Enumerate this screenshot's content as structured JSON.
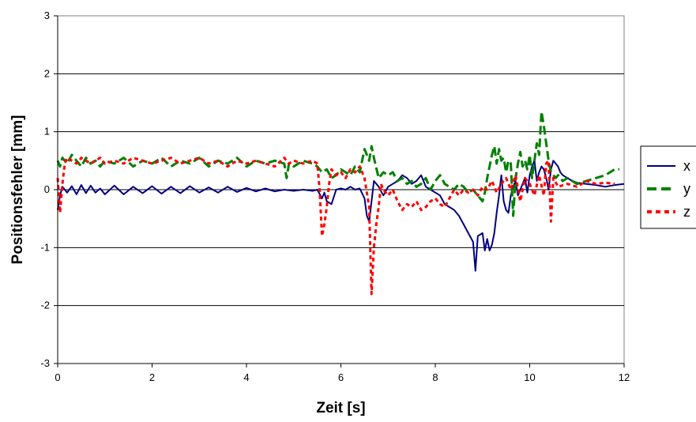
{
  "chart_data": {
    "type": "line",
    "title": "",
    "xlabel": "Zeit [s]",
    "ylabel": "Positionsfehler [mm]",
    "xlim": [
      0,
      12
    ],
    "ylim": [
      -3,
      3
    ],
    "xticks": [
      "0",
      "2",
      "4",
      "6",
      "8",
      "10",
      "12"
    ],
    "yticks": [
      "-3",
      "-2",
      "-1",
      "0",
      "1",
      "2",
      "3"
    ],
    "grid": "horizontal",
    "legend_position": "right",
    "series": [
      {
        "name": "x",
        "color": "#000080",
        "dash": "solid",
        "x": [
          0,
          0.05,
          0.1,
          0.2,
          0.3,
          0.4,
          0.5,
          0.6,
          0.7,
          0.8,
          0.9,
          1.0,
          1.2,
          1.4,
          1.6,
          1.8,
          2.0,
          2.2,
          2.4,
          2.6,
          2.8,
          3.0,
          3.2,
          3.4,
          3.6,
          3.8,
          4.0,
          4.2,
          4.4,
          4.6,
          4.8,
          5.0,
          5.2,
          5.4,
          5.5,
          5.6,
          5.65,
          5.7,
          5.8,
          5.9,
          6.0,
          6.1,
          6.2,
          6.3,
          6.4,
          6.5,
          6.55,
          6.6,
          6.65,
          6.7,
          6.8,
          6.9,
          7.0,
          7.1,
          7.2,
          7.3,
          7.4,
          7.5,
          7.6,
          7.7,
          7.8,
          7.9,
          8.0,
          8.1,
          8.2,
          8.3,
          8.4,
          8.5,
          8.6,
          8.7,
          8.8,
          8.85,
          8.9,
          9.0,
          9.05,
          9.1,
          9.15,
          9.2,
          9.25,
          9.3,
          9.35,
          9.4,
          9.45,
          9.5,
          9.55,
          9.6,
          9.65,
          9.7,
          9.75,
          9.8,
          9.85,
          9.9,
          9.95,
          10.0,
          10.05,
          10.1,
          10.15,
          10.2,
          10.25,
          10.3,
          10.35,
          10.4,
          10.45,
          10.5,
          10.55,
          10.6,
          10.65,
          10.7,
          10.8,
          10.9,
          11.0,
          11.2,
          11.4,
          11.6,
          11.8,
          12.0
        ],
        "y": [
          -0.35,
          -0.1,
          0.05,
          -0.05,
          0.06,
          -0.08,
          0.08,
          -0.06,
          0.07,
          -0.05,
          0.02,
          -0.08,
          0.07,
          -0.08,
          0.05,
          -0.06,
          0.06,
          -0.07,
          0.05,
          -0.06,
          0.06,
          -0.05,
          0.04,
          -0.05,
          0.05,
          -0.04,
          0.03,
          -0.03,
          0.02,
          -0.03,
          0.0,
          -0.02,
          0.0,
          -0.02,
          0.0,
          -0.15,
          -0.05,
          -0.2,
          -0.25,
          0.0,
          0.02,
          0.0,
          0.05,
          0.0,
          0.02,
          -0.15,
          -0.45,
          -0.55,
          -0.2,
          0.15,
          0.05,
          -0.1,
          0.05,
          0.1,
          0.15,
          0.25,
          0.2,
          0.1,
          0.15,
          0.25,
          0.05,
          0.0,
          -0.05,
          -0.1,
          -0.25,
          -0.3,
          -0.35,
          -0.45,
          -0.6,
          -0.75,
          -0.9,
          -1.4,
          -0.8,
          -0.75,
          -1.05,
          -0.85,
          -1.05,
          -0.95,
          -0.75,
          -0.4,
          -0.1,
          0.25,
          -0.2,
          -0.35,
          -0.4,
          -0.1,
          0.05,
          0.15,
          -0.1,
          0.0,
          0.1,
          0.2,
          -0.05,
          0.25,
          0.4,
          0.5,
          0.15,
          0.3,
          0.4,
          0.35,
          0.2,
          0.0,
          0.35,
          0.5,
          0.45,
          0.4,
          0.3,
          0.25,
          0.2,
          0.15,
          0.12,
          0.1,
          0.08,
          0.05,
          0.08,
          0.1
        ]
      },
      {
        "name": "y",
        "color": "#008000",
        "dash": "dashed",
        "x": [
          0,
          0.05,
          0.1,
          0.2,
          0.3,
          0.4,
          0.5,
          0.6,
          0.7,
          0.8,
          0.9,
          1.0,
          1.2,
          1.4,
          1.6,
          1.8,
          2.0,
          2.2,
          2.4,
          2.6,
          2.8,
          3.0,
          3.2,
          3.4,
          3.6,
          3.8,
          4.0,
          4.2,
          4.4,
          4.6,
          4.8,
          4.85,
          4.9,
          5.0,
          5.2,
          5.4,
          5.5,
          5.6,
          5.7,
          5.8,
          5.9,
          6.0,
          6.1,
          6.2,
          6.3,
          6.4,
          6.5,
          6.55,
          6.6,
          6.65,
          6.7,
          6.8,
          6.9,
          7.0,
          7.1,
          7.2,
          7.3,
          7.4,
          7.5,
          7.6,
          7.7,
          7.8,
          7.9,
          8.0,
          8.1,
          8.2,
          8.3,
          8.4,
          8.5,
          8.6,
          8.7,
          8.8,
          8.9,
          9.0,
          9.05,
          9.1,
          9.15,
          9.2,
          9.25,
          9.3,
          9.35,
          9.4,
          9.45,
          9.5,
          9.55,
          9.6,
          9.65,
          9.7,
          9.75,
          9.8,
          9.85,
          9.9,
          9.95,
          10.0,
          10.05,
          10.1,
          10.15,
          10.2,
          10.25,
          10.3,
          10.35,
          10.4,
          10.45,
          10.5,
          10.55,
          10.6,
          10.7,
          10.8,
          11.0,
          11.2,
          11.4,
          11.6,
          11.8,
          11.9
        ],
        "y": [
          0.5,
          0.4,
          0.55,
          0.45,
          0.6,
          0.5,
          0.4,
          0.55,
          0.45,
          0.5,
          0.4,
          0.5,
          0.45,
          0.55,
          0.4,
          0.5,
          0.45,
          0.55,
          0.4,
          0.5,
          0.45,
          0.55,
          0.4,
          0.5,
          0.45,
          0.55,
          0.4,
          0.5,
          0.45,
          0.5,
          0.45,
          0.2,
          0.45,
          0.4,
          0.5,
          0.45,
          0.4,
          0.3,
          0.35,
          0.2,
          0.25,
          0.35,
          0.3,
          0.25,
          0.4,
          0.3,
          0.7,
          0.6,
          0.5,
          0.75,
          0.55,
          0.2,
          0.3,
          0.25,
          0.3,
          0.15,
          0.2,
          0.1,
          0.15,
          0.05,
          0.1,
          0.2,
          0.0,
          0.15,
          0.25,
          0.1,
          0.05,
          0.0,
          0.1,
          0.05,
          -0.05,
          0.0,
          -0.1,
          -0.2,
          -0.05,
          0.2,
          0.4,
          0.6,
          0.75,
          0.45,
          0.7,
          0.5,
          0.55,
          0.3,
          0.5,
          0.45,
          -0.45,
          0.2,
          0.45,
          0.65,
          0.4,
          0.5,
          0.35,
          0.6,
          0.2,
          0.5,
          0.8,
          0.6,
          1.35,
          1.1,
          0.8,
          0.5,
          0.3,
          0.25,
          0.2,
          0.25,
          0.15,
          0.2,
          0.1,
          0.15,
          0.2,
          0.25,
          0.35,
          0.35
        ]
      },
      {
        "name": "z",
        "color": "#ff0000",
        "dash": "dotted",
        "x": [
          0,
          0.05,
          0.1,
          0.15,
          0.2,
          0.3,
          0.4,
          0.5,
          0.6,
          0.7,
          0.8,
          0.9,
          1.0,
          1.2,
          1.4,
          1.6,
          1.8,
          2.0,
          2.2,
          2.4,
          2.6,
          2.8,
          3.0,
          3.2,
          3.4,
          3.6,
          3.8,
          4.0,
          4.2,
          4.4,
          4.6,
          4.8,
          4.9,
          5.0,
          5.2,
          5.4,
          5.5,
          5.55,
          5.6,
          5.65,
          5.7,
          5.75,
          5.8,
          5.9,
          6.0,
          6.1,
          6.2,
          6.3,
          6.4,
          6.5,
          6.6,
          6.65,
          6.7,
          6.75,
          6.8,
          6.85,
          6.9,
          7.0,
          7.1,
          7.2,
          7.3,
          7.4,
          7.5,
          7.6,
          7.7,
          7.8,
          7.9,
          8.0,
          8.1,
          8.2,
          8.3,
          8.4,
          8.5,
          8.6,
          8.7,
          8.8,
          8.9,
          9.0,
          9.1,
          9.2,
          9.3,
          9.4,
          9.5,
          9.6,
          9.7,
          9.8,
          9.9,
          10.0,
          10.1,
          10.2,
          10.3,
          10.35,
          10.4,
          10.45,
          10.5,
          10.6,
          10.8,
          11.0,
          11.2,
          11.4,
          11.6,
          11.8
        ],
        "y": [
          0.2,
          -0.4,
          0.1,
          0.45,
          0.55,
          0.5,
          0.45,
          0.55,
          0.5,
          0.45,
          0.5,
          0.55,
          0.45,
          0.5,
          0.45,
          0.55,
          0.5,
          0.45,
          0.5,
          0.55,
          0.45,
          0.5,
          0.55,
          0.45,
          0.5,
          0.4,
          0.5,
          0.45,
          0.5,
          0.45,
          0.4,
          0.55,
          0.45,
          0.5,
          0.45,
          0.5,
          0.45,
          0.0,
          -0.8,
          -0.6,
          -0.3,
          0.1,
          0.35,
          0.25,
          0.3,
          0.2,
          0.35,
          0.3,
          0.4,
          0.2,
          -0.3,
          -1.8,
          -1.0,
          -0.6,
          -0.3,
          0.1,
          0.0,
          -0.1,
          0.0,
          -0.2,
          -0.35,
          -0.25,
          -0.3,
          -0.2,
          -0.35,
          -0.3,
          -0.2,
          -0.15,
          -0.25,
          -0.3,
          -0.15,
          0.0,
          -0.1,
          0.0,
          -0.05,
          0.0,
          -0.1,
          0.05,
          0.0,
          0.15,
          -0.05,
          0.1,
          0.2,
          0.0,
          0.25,
          -0.2,
          0.2,
          0.1,
          -0.1,
          0.25,
          -0.1,
          0.45,
          0.5,
          -0.55,
          0.2,
          0.05,
          0.1,
          0.05,
          0.15,
          0.1,
          0.12,
          0.1
        ]
      }
    ]
  }
}
